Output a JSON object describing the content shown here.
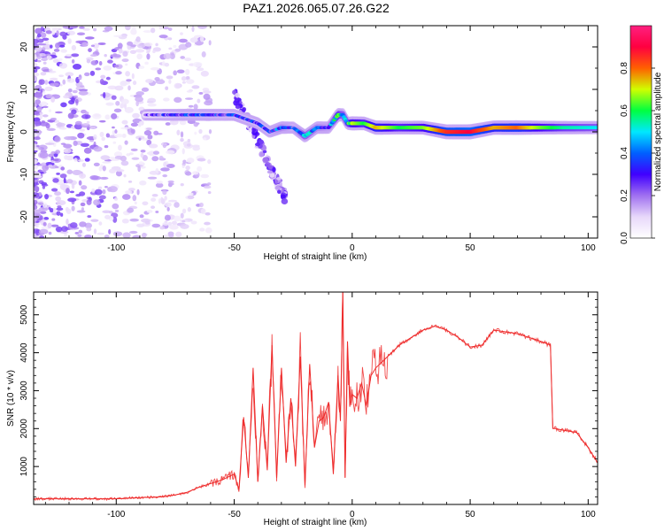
{
  "title": "PAZ1.2026.065.07.26.G22",
  "chart_data": [
    {
      "type": "heatmap",
      "xlabel": "Height of straight line (km)",
      "ylabel": "Frequency (Hz)",
      "xlim": [
        -135,
        104
      ],
      "ylim": [
        -25,
        25
      ],
      "xticks": [
        -100,
        -50,
        0,
        50,
        100
      ],
      "yticks": [
        -20,
        -10,
        0,
        10,
        20
      ],
      "colorbar": {
        "label": "Normalized spectral amplitude",
        "range": [
          0,
          1
        ],
        "ticks": [
          0.0,
          0.2,
          0.4,
          0.6,
          0.8
        ],
        "tick_labels": [
          "0.0",
          "0.2",
          "0.4",
          "0.6",
          "0.8"
        ],
        "colormap": [
          "#ffffff",
          "#e8d8fa",
          "#a070f0",
          "#4000ff",
          "#0060ff",
          "#00e8ff",
          "#00ff40",
          "#d0ff00",
          "#ff6000",
          "#ff0040",
          "#ff2080"
        ]
      },
      "ridge": {
        "x": [
          -88,
          -80,
          -72,
          -65,
          -58,
          -50,
          -45,
          -40,
          -35,
          -30,
          -25,
          -20,
          -15,
          -10,
          -6,
          -4,
          -2,
          0,
          5,
          10,
          20,
          30,
          40,
          50,
          60,
          70,
          80,
          90,
          104
        ],
        "freq": [
          4,
          4,
          4,
          4,
          4,
          4,
          3,
          2,
          0,
          1,
          1,
          -1,
          1,
          1,
          4,
          4,
          2,
          2,
          2,
          1,
          1,
          1,
          0,
          0,
          1,
          1,
          1,
          1,
          1
        ],
        "amplitude": [
          0.2,
          0.25,
          0.3,
          0.3,
          0.3,
          0.3,
          0.3,
          0.3,
          0.3,
          0.4,
          0.3,
          0.5,
          0.4,
          0.35,
          0.6,
          0.5,
          0.5,
          0.7,
          0.6,
          0.75,
          0.6,
          0.65,
          0.85,
          0.9,
          0.75,
          0.8,
          0.65,
          0.55,
          0.5
        ]
      }
    },
    {
      "type": "line",
      "xlabel": "Height of straight line (km)",
      "ylabel": "SNR (10 * v/v)",
      "xlim": [
        -135,
        104
      ],
      "ylim": [
        0,
        5600
      ],
      "xticks": [
        -100,
        -50,
        0,
        50,
        100
      ],
      "yticks": [
        1000,
        2000,
        3000,
        4000,
        5000
      ],
      "series": [
        {
          "name": "SNR",
          "color": "#ee2a2a",
          "x": [
            -135,
            -120,
            -100,
            -90,
            -80,
            -75,
            -70,
            -65,
            -60,
            -55,
            -50,
            -48,
            -46,
            -44,
            -42,
            -40,
            -38,
            -36,
            -34,
            -32,
            -30,
            -28,
            -26,
            -24,
            -22,
            -20,
            -18,
            -16,
            -14,
            -12,
            -10,
            -8,
            -6,
            -5,
            -4,
            -3,
            -2,
            -1,
            0,
            2,
            4,
            6,
            8,
            10,
            15,
            20,
            25,
            30,
            35,
            40,
            45,
            50,
            55,
            60,
            65,
            70,
            75,
            80,
            84,
            85,
            86,
            90,
            95,
            100,
            104
          ],
          "y": [
            150,
            150,
            150,
            180,
            200,
            250,
            320,
            450,
            550,
            650,
            800,
            400,
            2300,
            700,
            3600,
            600,
            2600,
            900,
            4200,
            700,
            3600,
            1100,
            2800,
            1000,
            3900,
            500,
            3700,
            1500,
            2200,
            2300,
            2700,
            800,
            3400,
            2200,
            5600,
            700,
            4300,
            2600,
            2900,
            2800,
            3200,
            2600,
            3400,
            3600,
            3900,
            4200,
            4400,
            4600,
            4700,
            4600,
            4400,
            4150,
            4200,
            4600,
            4550,
            4500,
            4400,
            4300,
            4200,
            2000,
            2000,
            1950,
            1900,
            1500,
            1100
          ]
        }
      ]
    }
  ]
}
